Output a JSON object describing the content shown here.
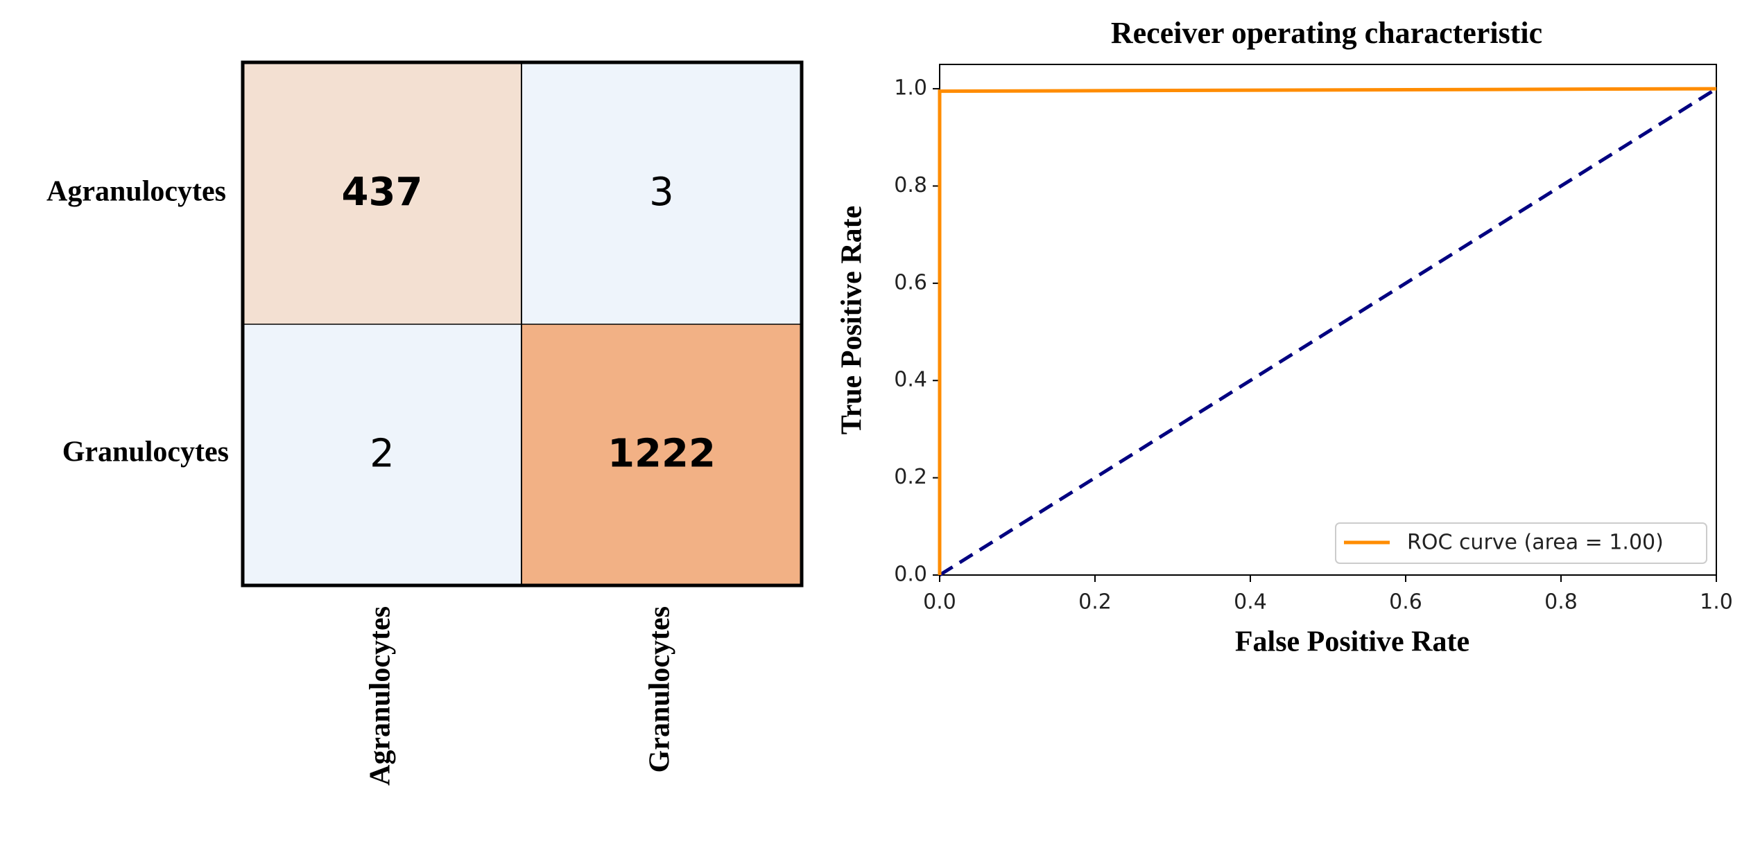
{
  "chart_data": [
    {
      "type": "heatmap",
      "row_labels": [
        "Agranulocytes",
        "Granulocytes"
      ],
      "col_labels": [
        "Agranulocytes",
        "Granulocytes"
      ],
      "matrix": [
        [
          437,
          3
        ],
        [
          2,
          1222
        ]
      ],
      "colors": {
        "low": "#eef4fb",
        "mid": "#f3e0d2",
        "high": "#f2b185"
      }
    },
    {
      "type": "line",
      "title": "Receiver operating characteristic",
      "xlabel": "False Positive Rate",
      "ylabel": "True Positive Rate",
      "xlim": [
        0,
        1
      ],
      "ylim": [
        0,
        1.05
      ],
      "xticks": [
        "0.0",
        "0.2",
        "0.4",
        "0.6",
        "0.8",
        "1.0"
      ],
      "yticks": [
        "0.0",
        "0.2",
        "0.4",
        "0.6",
        "0.8",
        "1.0"
      ],
      "legend_position": "lower-right",
      "series": [
        {
          "name": "ROC curve (area = 1.00)",
          "color": "#ff8c00",
          "style": "solid",
          "points": [
            [
              0,
              0
            ],
            [
              0,
              0.995
            ],
            [
              1,
              1
            ]
          ]
        },
        {
          "color": "#000080",
          "style": "dashed",
          "points": [
            [
              0,
              0
            ],
            [
              1,
              1
            ]
          ]
        }
      ]
    }
  ]
}
